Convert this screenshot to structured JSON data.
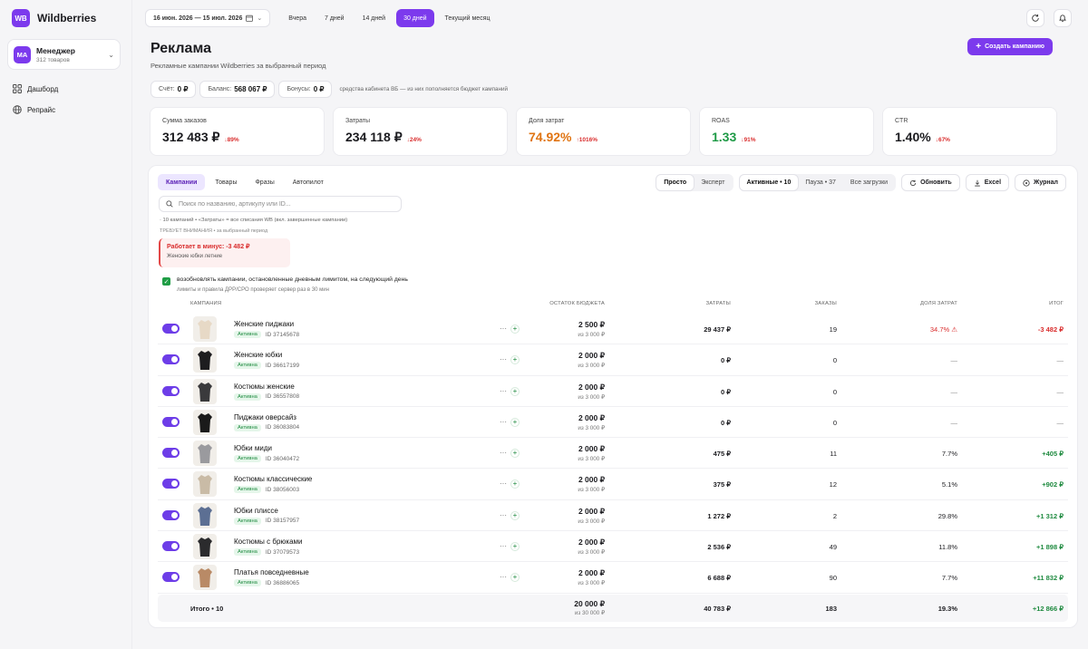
{
  "brand": {
    "logo": "WB",
    "name": "Wildberries"
  },
  "account": {
    "initials": "МА",
    "name": "Менеджер",
    "sub": "312 товаров"
  },
  "nav": [
    {
      "label": "Дашборд",
      "icon": "grid-icon"
    },
    {
      "label": "Репрайс",
      "icon": "globe-icon"
    }
  ],
  "topbar": {
    "date_range": "16 июн. 2026 — 15 июл. 2026",
    "periods": [
      "Вчера",
      "7 дней",
      "14 дней",
      "30 дней",
      "Текущий месяц"
    ],
    "active_period": "30 дней"
  },
  "header": {
    "title": "Реклама",
    "subtitle": "Рекламные кампании Wildberries за выбранный период",
    "create_label": "Создать кампанию"
  },
  "balances": {
    "account_label": "Счёт:",
    "account_value": "0 ₽",
    "balance_label": "Баланс:",
    "balance_value": "568 067 ₽",
    "bonus_label": "Бонусы:",
    "bonus_value": "0 ₽",
    "note": "средства кабинета ВБ — из них пополняется бюджет кампаний"
  },
  "kpis": [
    {
      "label": "Сумма заказов",
      "value": "312 483 ₽",
      "delta": "↓89%",
      "value_color": "#1b1b1f",
      "delta_color": "#d92d2d"
    },
    {
      "label": "Затраты",
      "value": "234 118 ₽",
      "delta": "↓24%",
      "value_color": "#1b1b1f",
      "delta_color": "#d92d2d"
    },
    {
      "label": "Доля затрат",
      "value": "74.92%",
      "delta": "↑1016%",
      "value_color": "#e07412",
      "delta_color": "#d92d2d"
    },
    {
      "label": "ROAS",
      "value": "1.33",
      "delta": "↓91%",
      "value_color": "#1e9a46",
      "delta_color": "#d92d2d"
    },
    {
      "label": "CTR",
      "value": "1.40%",
      "delta": "↓67%",
      "value_color": "#1b1b1f",
      "delta_color": "#d92d2d"
    }
  ],
  "tabs": [
    "Кампании",
    "Товары",
    "Фразы",
    "Автопилот"
  ],
  "active_tab": "Кампании",
  "modes": [
    "Просто",
    "Эксперт"
  ],
  "active_mode": "Просто",
  "filters": [
    "Активные • 10",
    "Пауза • 37",
    "Все загрузки"
  ],
  "active_filter": "Активные • 10",
  "tools": {
    "refresh": "Обновить",
    "excel": "Excel",
    "journal": "Журнал"
  },
  "search": {
    "placeholder": "Поиск по названию, артикулу или ID..."
  },
  "info_line": "· 10 кампаний • «Затраты» = все списания WB (вкл. завершенные кампании)",
  "attention": "ТРЕБУЕТ ВНИМАНИЯ • за выбранный период",
  "alert": {
    "title": "Работает в минус: -3 482 ₽",
    "sub": "Женские юбки летние"
  },
  "resume": {
    "label": "возобновлять кампании, остановленные дневным лимитом, на следующий день",
    "sub": "лимиты и правила ДРР/СРО проверяет сервер раз в 30 мин"
  },
  "columns": {
    "campaign": "КАМПАНИЯ",
    "budget": "ОСТАТОК БЮДЖЕТА",
    "cost": "ЗАТРАТЫ",
    "orders": "ЗАКАЗЫ",
    "share": "ДОЛЯ ЗАТРАТ",
    "total": "ИТОГ"
  },
  "rows": [
    {
      "name": "Женские пиджаки",
      "status": "Активна",
      "id": "ID 37145678",
      "budget": "2 500 ₽",
      "budget_of": "из 3 000 ₽",
      "cost": "29 437 ₽",
      "orders": "19",
      "share": "34.7%",
      "total": "-3 482 ₽",
      "tone": "neg",
      "thumb": "#e7d9c6"
    },
    {
      "name": "Женские юбки",
      "status": "Активна",
      "id": "ID 36617199",
      "budget": "2 000 ₽",
      "budget_of": "из 3 000 ₽",
      "cost": "0 ₽",
      "orders": "0",
      "share": "—",
      "total": "—",
      "tone": "none",
      "thumb": "#1d1d1f"
    },
    {
      "name": "Костюмы женские",
      "status": "Активна",
      "id": "ID 36557808",
      "budget": "2 000 ₽",
      "budget_of": "из 3 000 ₽",
      "cost": "0 ₽",
      "orders": "0",
      "share": "—",
      "total": "—",
      "tone": "none",
      "thumb": "#3a3a3c"
    },
    {
      "name": "Пиджаки оверсайз",
      "status": "Активна",
      "id": "ID 36083804",
      "budget": "2 000 ₽",
      "budget_of": "из 3 000 ₽",
      "cost": "0 ₽",
      "orders": "0",
      "share": "—",
      "total": "—",
      "tone": "none",
      "thumb": "#1a1a1a"
    },
    {
      "name": "Юбки миди",
      "status": "Активна",
      "id": "ID 36040472",
      "budget": "2 000 ₽",
      "budget_of": "из 3 000 ₽",
      "cost": "475 ₽",
      "orders": "11",
      "share": "7.7%",
      "total": "+405 ₽",
      "tone": "pos",
      "thumb": "#9a9a9e"
    },
    {
      "name": "Костюмы классические",
      "status": "Активна",
      "id": "ID 38056003",
      "budget": "2 000 ₽",
      "budget_of": "из 3 000 ₽",
      "cost": "375 ₽",
      "orders": "12",
      "share": "5.1%",
      "total": "+902 ₽",
      "tone": "pos",
      "thumb": "#c9bba6"
    },
    {
      "name": "Юбки плиссе",
      "status": "Активна",
      "id": "ID 38157957",
      "budget": "2 000 ₽",
      "budget_of": "из 3 000 ₽",
      "cost": "1 272 ₽",
      "orders": "2",
      "share": "29.8%",
      "total": "+1 312 ₽",
      "tone": "pos",
      "thumb": "#5c6f93"
    },
    {
      "name": "Костюмы с брюками",
      "status": "Активна",
      "id": "ID 37079573",
      "budget": "2 000 ₽",
      "budget_of": "из 3 000 ₽",
      "cost": "2 536 ₽",
      "orders": "49",
      "share": "11.8%",
      "total": "+1 898 ₽",
      "tone": "pos",
      "thumb": "#2b2b2d"
    },
    {
      "name": "Платья повседневные",
      "status": "Активна",
      "id": "ID 36886065",
      "budget": "2 000 ₽",
      "budget_of": "из 3 000 ₽",
      "cost": "6 688 ₽",
      "orders": "90",
      "share": "7.7%",
      "total": "+11 832 ₽",
      "tone": "pos",
      "thumb": "#b98a66"
    }
  ],
  "footer": {
    "label": "Итого • 10",
    "budget": "20 000 ₽",
    "budget_of": "из 30 000 ₽",
    "cost": "40 783 ₽",
    "orders": "183",
    "share": "19.3%",
    "total": "+12 866 ₽"
  }
}
